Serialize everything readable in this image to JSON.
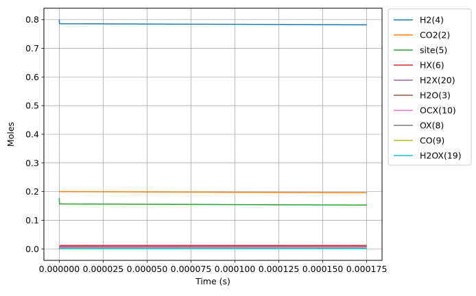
{
  "chart_data": {
    "type": "line",
    "title": "",
    "xlabel": "Time  (s)",
    "ylabel": "Moles",
    "xlim": [
      -8.75e-06,
      0.00018375
    ],
    "ylim": [
      -0.04,
      0.84
    ],
    "grid": true,
    "legend_position": "outside-right",
    "x_ticks": [
      0.0,
      2.5e-05,
      5e-05,
      7.5e-05,
      0.0001,
      0.000125,
      0.00015,
      0.000175
    ],
    "x_tick_labels": [
      "0.000000",
      "0.000025",
      "0.000050",
      "0.000075",
      "0.000100",
      "0.000125",
      "0.000150",
      "0.000175"
    ],
    "y_ticks": [
      0.0,
      0.1,
      0.2,
      0.3,
      0.4,
      0.5,
      0.6,
      0.7,
      0.8
    ],
    "y_tick_labels": [
      "0.0",
      "0.1",
      "0.2",
      "0.3",
      "0.4",
      "0.5",
      "0.6",
      "0.7",
      "0.8"
    ],
    "series": [
      {
        "name": "H2(4)",
        "color": "#1f77b4",
        "x": [
          0,
          1e-07,
          5e-07,
          0.000175
        ],
        "y": [
          0.8,
          0.787,
          0.786,
          0.782
        ]
      },
      {
        "name": "CO2(2)",
        "color": "#ff7f0e",
        "x": [
          0,
          5e-07,
          0.000175
        ],
        "y": [
          0.2,
          0.2,
          0.196
        ]
      },
      {
        "name": "site(5)",
        "color": "#2ca02c",
        "x": [
          0,
          1e-07,
          5e-07,
          0.000175
        ],
        "y": [
          0.177,
          0.158,
          0.157,
          0.153
        ]
      },
      {
        "name": "HX(6)",
        "color": "#d62728",
        "x": [
          0,
          5e-07,
          0.000175
        ],
        "y": [
          0.0,
          0.012,
          0.012
        ]
      },
      {
        "name": "H2X(20)",
        "color": "#9467bd",
        "x": [
          0,
          5e-07,
          0.000175
        ],
        "y": [
          0.0,
          0.009,
          0.009
        ]
      },
      {
        "name": "H2O(3)",
        "color": "#8c564b",
        "x": [
          0,
          5e-07,
          0.000175
        ],
        "y": [
          0.0,
          0.007,
          0.008
        ]
      },
      {
        "name": "OCX(10)",
        "color": "#e377c2",
        "x": [
          0,
          5e-07,
          0.000175
        ],
        "y": [
          0.0,
          0.006,
          0.007
        ]
      },
      {
        "name": "OX(8)",
        "color": "#7f7f7f",
        "x": [
          0,
          5e-07,
          0.000175
        ],
        "y": [
          0.0,
          0.003,
          0.003
        ]
      },
      {
        "name": "CO(9)",
        "color": "#bcbd22",
        "x": [
          0,
          5e-07,
          0.000175
        ],
        "y": [
          0.0,
          0.002,
          0.002
        ]
      },
      {
        "name": "H2OX(19)",
        "color": "#17becf",
        "x": [
          0,
          5e-07,
          0.000175
        ],
        "y": [
          0.0,
          0.001,
          0.001
        ]
      }
    ]
  }
}
